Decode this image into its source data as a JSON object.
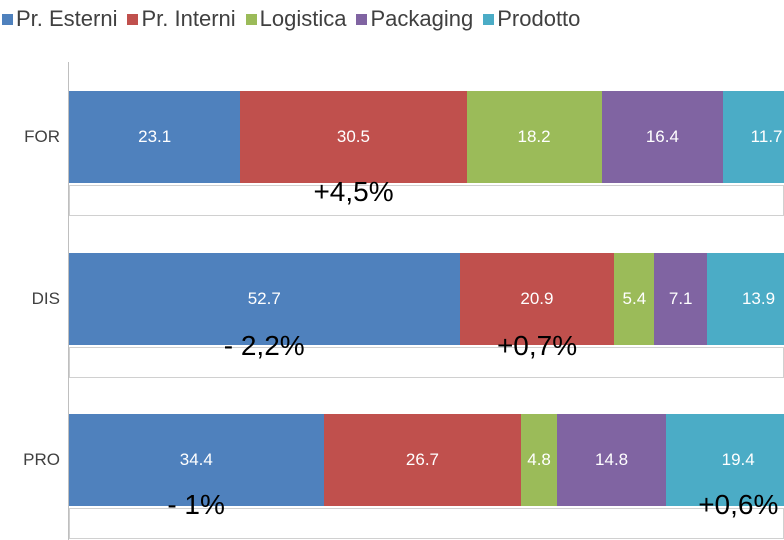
{
  "chart_data": {
    "type": "bar",
    "orientation": "horizontal",
    "stacked": true,
    "categories": [
      "FOR",
      "DIS",
      "PRO"
    ],
    "series": [
      {
        "name": "Pr. Esterni",
        "color": "#4F81BD",
        "values": [
          23.1,
          52.7,
          34.4
        ]
      },
      {
        "name": "Pr. Interni",
        "color": "#C0504D",
        "values": [
          30.5,
          20.9,
          26.7
        ]
      },
      {
        "name": "Logistica",
        "color": "#9BBB59",
        "values": [
          18.2,
          5.4,
          4.8
        ]
      },
      {
        "name": "Packaging",
        "color": "#8064A2",
        "values": [
          16.4,
          7.1,
          14.8
        ]
      },
      {
        "name": "Prodotto",
        "color": "#4BACC6",
        "values": [
          11.7,
          13.9,
          19.4
        ]
      }
    ],
    "legend_position": "top",
    "annotations": [
      {
        "category": "FOR",
        "series": "Pr. Interni",
        "text": "+4,5%"
      },
      {
        "category": "DIS",
        "series": "Pr. Esterni",
        "text": "- 2,2%"
      },
      {
        "category": "DIS",
        "series": "Pr. Interni",
        "text": "+0,7%"
      },
      {
        "category": "PRO",
        "series": "Pr. Esterni",
        "text": "- 1%"
      },
      {
        "category": "PRO",
        "series": "Prodotto",
        "text": "+0,6%"
      }
    ],
    "grid": false
  }
}
